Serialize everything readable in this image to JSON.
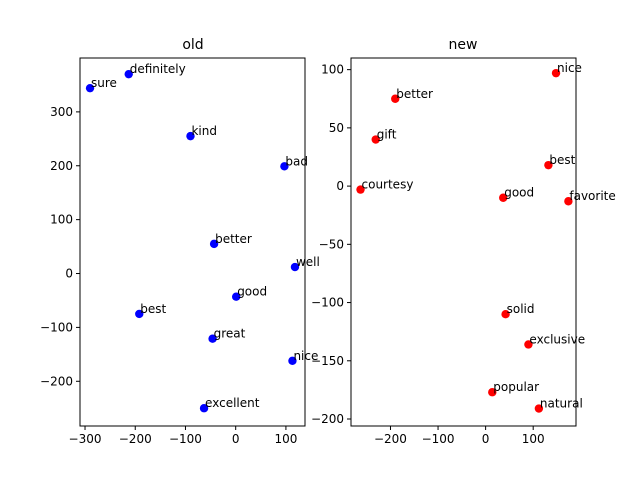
{
  "chart_data": [
    {
      "type": "scatter",
      "title": "old",
      "xlabel": "",
      "ylabel": "",
      "xlim": [
        -310,
        138
      ],
      "ylim": [
        -283,
        400
      ],
      "xticks": [
        -300,
        -200,
        -100,
        0,
        100
      ],
      "yticks": [
        -200,
        -100,
        0,
        100,
        200,
        300
      ],
      "xtick_labels": [
        "−300",
        "−200",
        "−100",
        "0",
        "100"
      ],
      "ytick_labels": [
        "−200",
        "−100",
        "0",
        "100",
        "200",
        "300"
      ],
      "marker_color": "#0000ff",
      "points": [
        {
          "label": "definitely",
          "x": -213,
          "y": 370
        },
        {
          "label": "sure",
          "x": -290,
          "y": 344
        },
        {
          "label": "kind",
          "x": -90,
          "y": 255
        },
        {
          "label": "bad",
          "x": 97,
          "y": 199
        },
        {
          "label": "better",
          "x": -43,
          "y": 55
        },
        {
          "label": "well",
          "x": 118,
          "y": 12
        },
        {
          "label": "good",
          "x": 1,
          "y": -43
        },
        {
          "label": "best",
          "x": -192,
          "y": -75
        },
        {
          "label": "great",
          "x": -46,
          "y": -121
        },
        {
          "label": "nice",
          "x": 113,
          "y": -162
        },
        {
          "label": "excellent",
          "x": -63,
          "y": -250
        }
      ]
    },
    {
      "type": "scatter",
      "title": "new",
      "xlabel": "",
      "ylabel": "",
      "xlim": [
        -283,
        190
      ],
      "ylim": [
        -206,
        110
      ],
      "xticks": [
        -200,
        -100,
        0,
        100
      ],
      "yticks": [
        -200,
        -150,
        -100,
        -50,
        0,
        50,
        100
      ],
      "xtick_labels": [
        "−200",
        "−100",
        "0",
        "100"
      ],
      "ytick_labels": [
        "−200",
        "−150",
        "−100",
        "−50",
        "0",
        "50",
        "100"
      ],
      "marker_color": "#ff0000",
      "points": [
        {
          "label": "nice",
          "x": 148,
          "y": 97
        },
        {
          "label": "better",
          "x": -190,
          "y": 75
        },
        {
          "label": "gift",
          "x": -231,
          "y": 40
        },
        {
          "label": "best",
          "x": 132,
          "y": 18
        },
        {
          "label": "courtesy",
          "x": -263,
          "y": -3
        },
        {
          "label": "good",
          "x": 37,
          "y": -10
        },
        {
          "label": "favorite",
          "x": 174,
          "y": -13
        },
        {
          "label": "solid",
          "x": 42,
          "y": -110
        },
        {
          "label": "exclusive",
          "x": 90,
          "y": -136
        },
        {
          "label": "popular",
          "x": 14,
          "y": -177
        },
        {
          "label": "natural",
          "x": 112,
          "y": -191
        }
      ]
    }
  ]
}
